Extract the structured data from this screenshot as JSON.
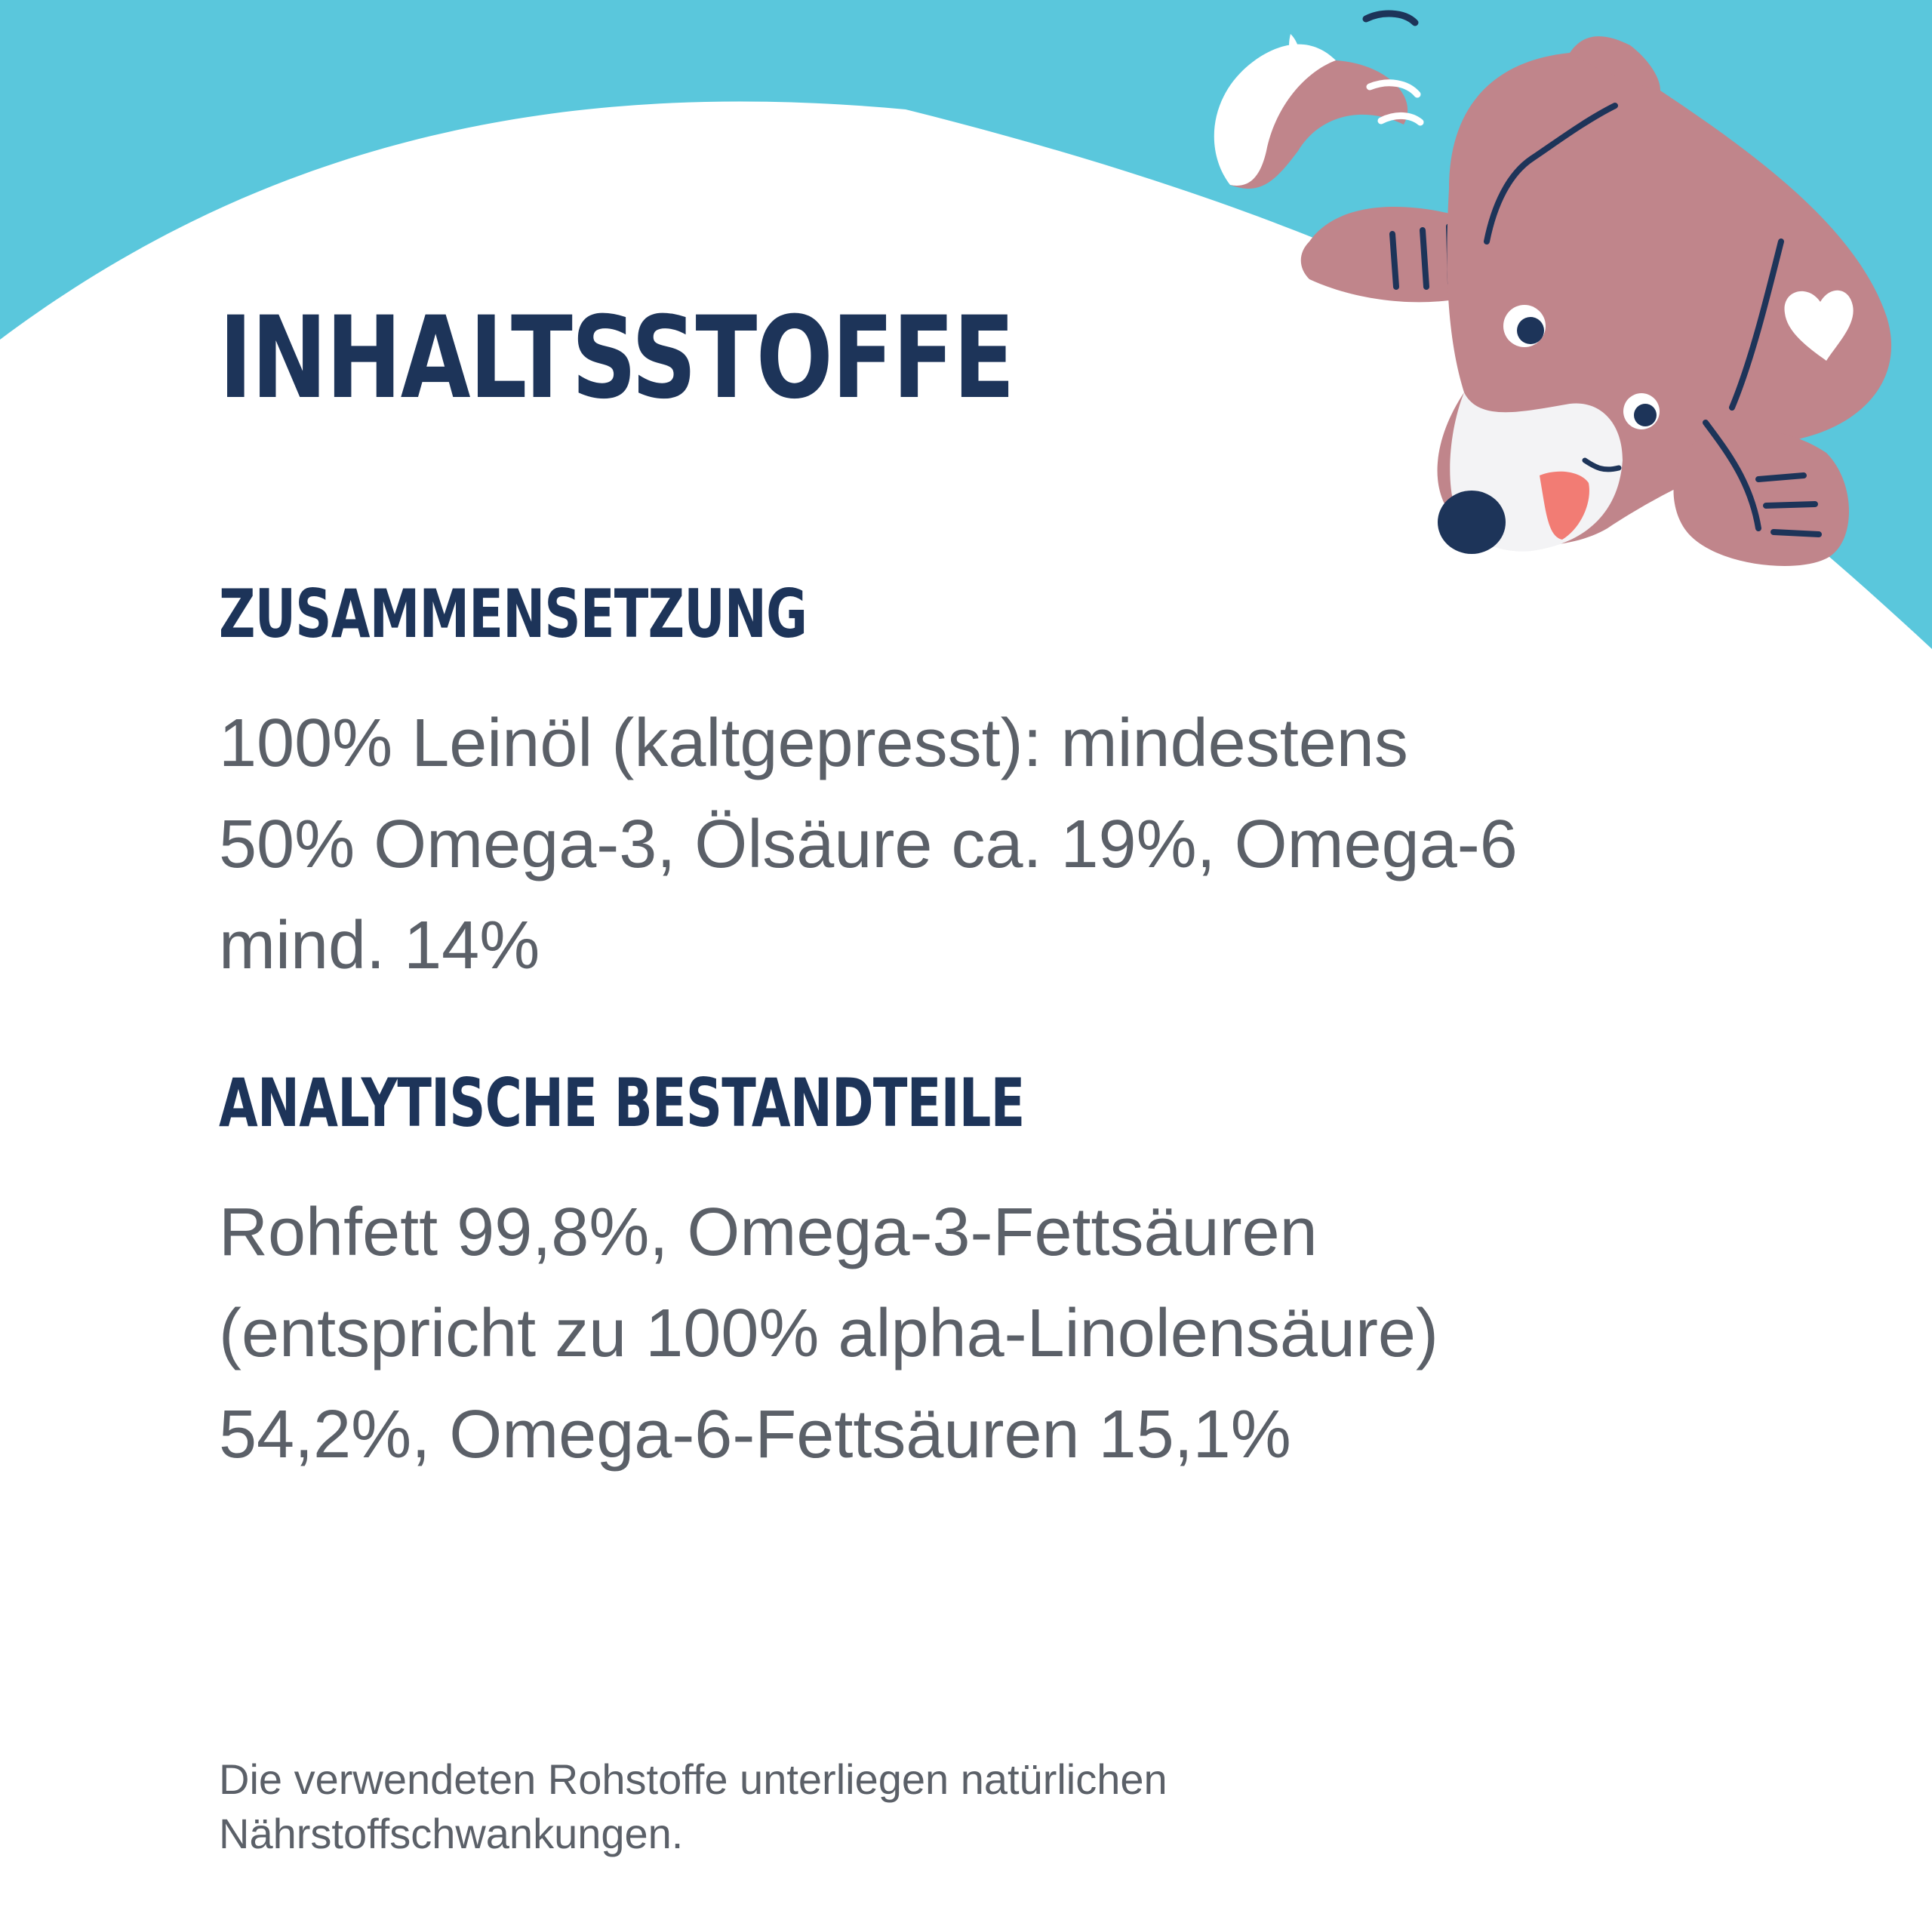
{
  "colors": {
    "sky": "#5ac7dc",
    "heading": "#1d3459",
    "body": "#5b6068",
    "dog_fur": "#c0858b",
    "dog_muzzle": "#f3f3f5",
    "dog_nose": "#1d3459",
    "dog_tongue": "#f27c74"
  },
  "title": "INHALTSSTOFFE",
  "sections": {
    "composition": {
      "heading": "ZUSAMMENSETZUNG",
      "text": "100% Leinöl (kaltgepresst): mindestens\n50% Omega-3, Ölsäure ca. 19%, Omega-6\nmind. 14%"
    },
    "analytical": {
      "heading": "ANALYTISCHE BESTANDTEILE",
      "text": "Rohfett 99,8%, Omega-3-Fettsäuren\n(entspricht zu 100% alpha-Linolensäure)\n54,2%, Omega-6-Fettsäuren 15,1%"
    }
  },
  "footnote": "Die verwendeten Rohstoffe unterliegen natürlichen\nNährstoffschwankungen.",
  "illustration": {
    "icon": "dog-illustration-icon"
  }
}
